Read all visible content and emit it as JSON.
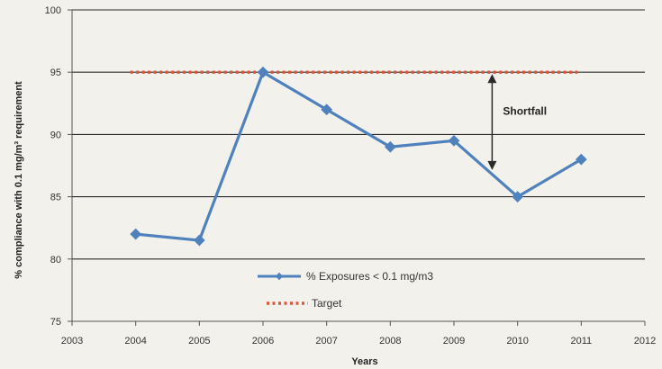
{
  "chart_data": {
    "type": "line",
    "xlabel": "Years",
    "ylabel": "% compliance with 0.1 mg/m³ requirement",
    "xlim": [
      2003,
      2012
    ],
    "ylim": [
      75,
      100
    ],
    "x_ticks": [
      2003,
      2004,
      2005,
      2006,
      2007,
      2008,
      2009,
      2010,
      2011,
      2012
    ],
    "y_ticks": [
      75,
      80,
      85,
      90,
      95,
      100
    ],
    "grid": "horizontal",
    "legend_position": "bottom-center",
    "series": [
      {
        "name": "% Exposures < 0.1 mg/m3",
        "style": "solid line with diamond markers",
        "color": "#4f81bd",
        "x": [
          2004,
          2005,
          2006,
          2007,
          2008,
          2009,
          2010,
          2011
        ],
        "y": [
          82,
          81.5,
          95,
          92,
          89,
          89.5,
          85,
          88
        ]
      },
      {
        "name": "Target",
        "style": "dotted line",
        "color": "#e0563a",
        "x": [
          2004,
          2011
        ],
        "y": [
          95,
          95
        ]
      }
    ],
    "annotations": [
      {
        "text": "Shortfall",
        "x": 2009.6,
        "y_from": 95,
        "y_to": 87,
        "type": "double-arrow"
      }
    ]
  }
}
